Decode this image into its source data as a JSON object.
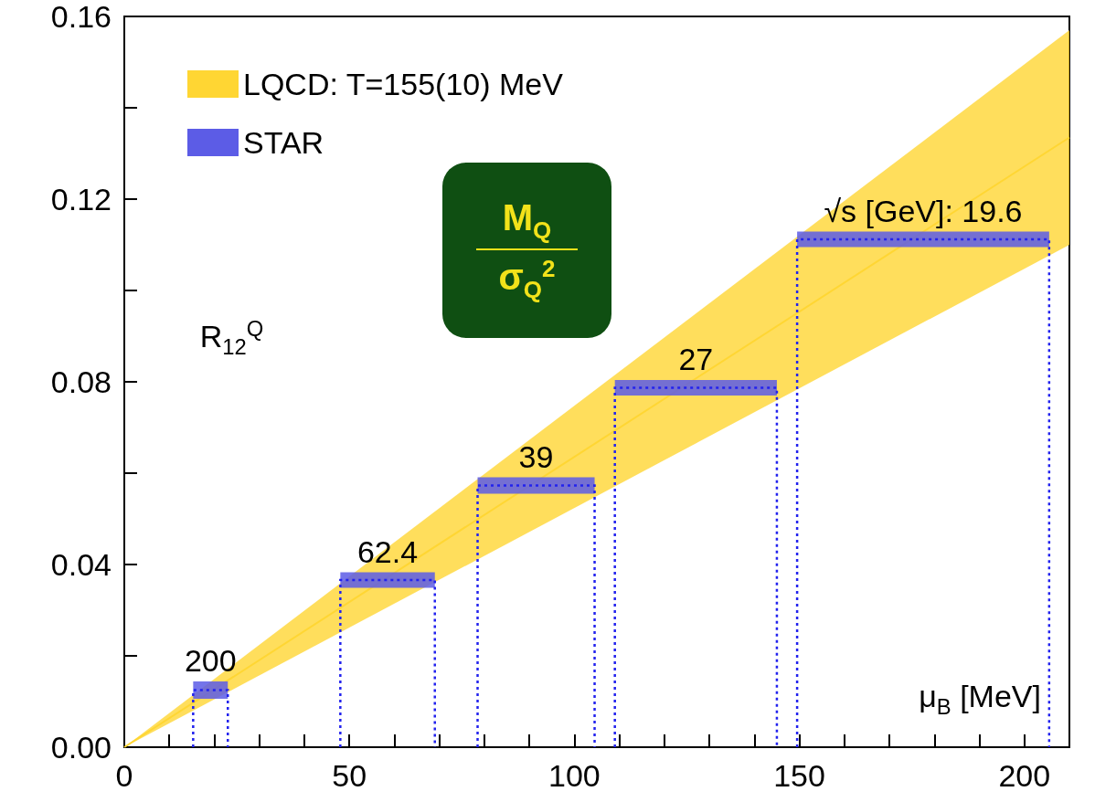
{
  "chart_data": {
    "type": "bar",
    "xlabel": "μ$_{B}$ [MeV]",
    "ylabel": "R$_{12}$$^{Q}$",
    "annotations": [
      "M$_{Q}$",
      "σ$_{Q}$$^{2}$",
      {
        "text": "200",
        "x": 19.15,
        "y": 0.0144
      },
      {
        "text": "62.4",
        "x": 58.5,
        "y": 0.0383
      },
      {
        "text": "39",
        "x": 91.5,
        "y": 0.0591
      },
      {
        "text": "27",
        "x": 127,
        "y": 0.0804
      },
      {
        "text": "√s [GeV]: 19.6",
        "x": 177.5,
        "y": 0.1129
      }
    ],
    "series": [
      {
        "type": "line",
        "name": "LQCD: T=155(10) MeV",
        "color": "#ffd633",
        "x": [
          0,
          210
        ],
        "values": [
          0,
          0.1335
        ],
        "lower": [
          0,
          0.11
        ],
        "upper": [
          0,
          0.157
        ]
      },
      {
        "name": "STAR",
        "color": "#5c5ce6",
        "x": [
          19.15,
          58.5,
          91.5,
          127,
          177.5
        ],
        "xerrors": [
          3.85,
          10.5,
          13,
          18,
          28
        ],
        "base": [
          0.0106,
          0.0349,
          0.0555,
          0.077,
          0.1095
        ],
        "values": [
          0.0038,
          0.0034,
          0.0036,
          0.0034,
          0.0034
        ]
      }
    ],
    "xlim": [
      0,
      210
    ],
    "xticks": [
      0,
      {
        "value": 10,
        "label": null
      },
      {
        "value": 20,
        "label": null
      },
      {
        "value": 30,
        "label": null
      },
      {
        "value": 40,
        "label": null
      },
      50,
      {
        "value": 60,
        "label": null
      },
      {
        "value": 70,
        "label": null
      },
      {
        "value": 80,
        "label": null
      },
      {
        "value": 90,
        "label": null
      },
      100,
      {
        "value": 110,
        "label": null
      },
      {
        "value": 120,
        "label": null
      },
      {
        "value": 130,
        "label": null
      },
      {
        "value": 140,
        "label": null
      },
      150,
      {
        "value": 160,
        "label": null
      },
      {
        "value": 170,
        "label": null
      },
      {
        "value": 180,
        "label": null
      },
      {
        "value": 190,
        "label": null
      },
      200
    ],
    "ylim": [
      0,
      0.16
    ],
    "yticks": [
      {
        "value": 0,
        "label": "0.00"
      },
      {
        "value": 0.02,
        "label": null
      },
      {
        "value": 0.04,
        "label": "0.04"
      },
      {
        "value": 0.06,
        "label": null
      },
      {
        "value": 0.08,
        "label": "0.08"
      },
      {
        "value": 0.1,
        "label": null
      },
      {
        "value": 0.12,
        "label": "0.12"
      },
      {
        "value": 0.14,
        "label": null
      },
      {
        "value": 0.16,
        "label": "0.16"
      }
    ],
    "legend": "top left"
  }
}
